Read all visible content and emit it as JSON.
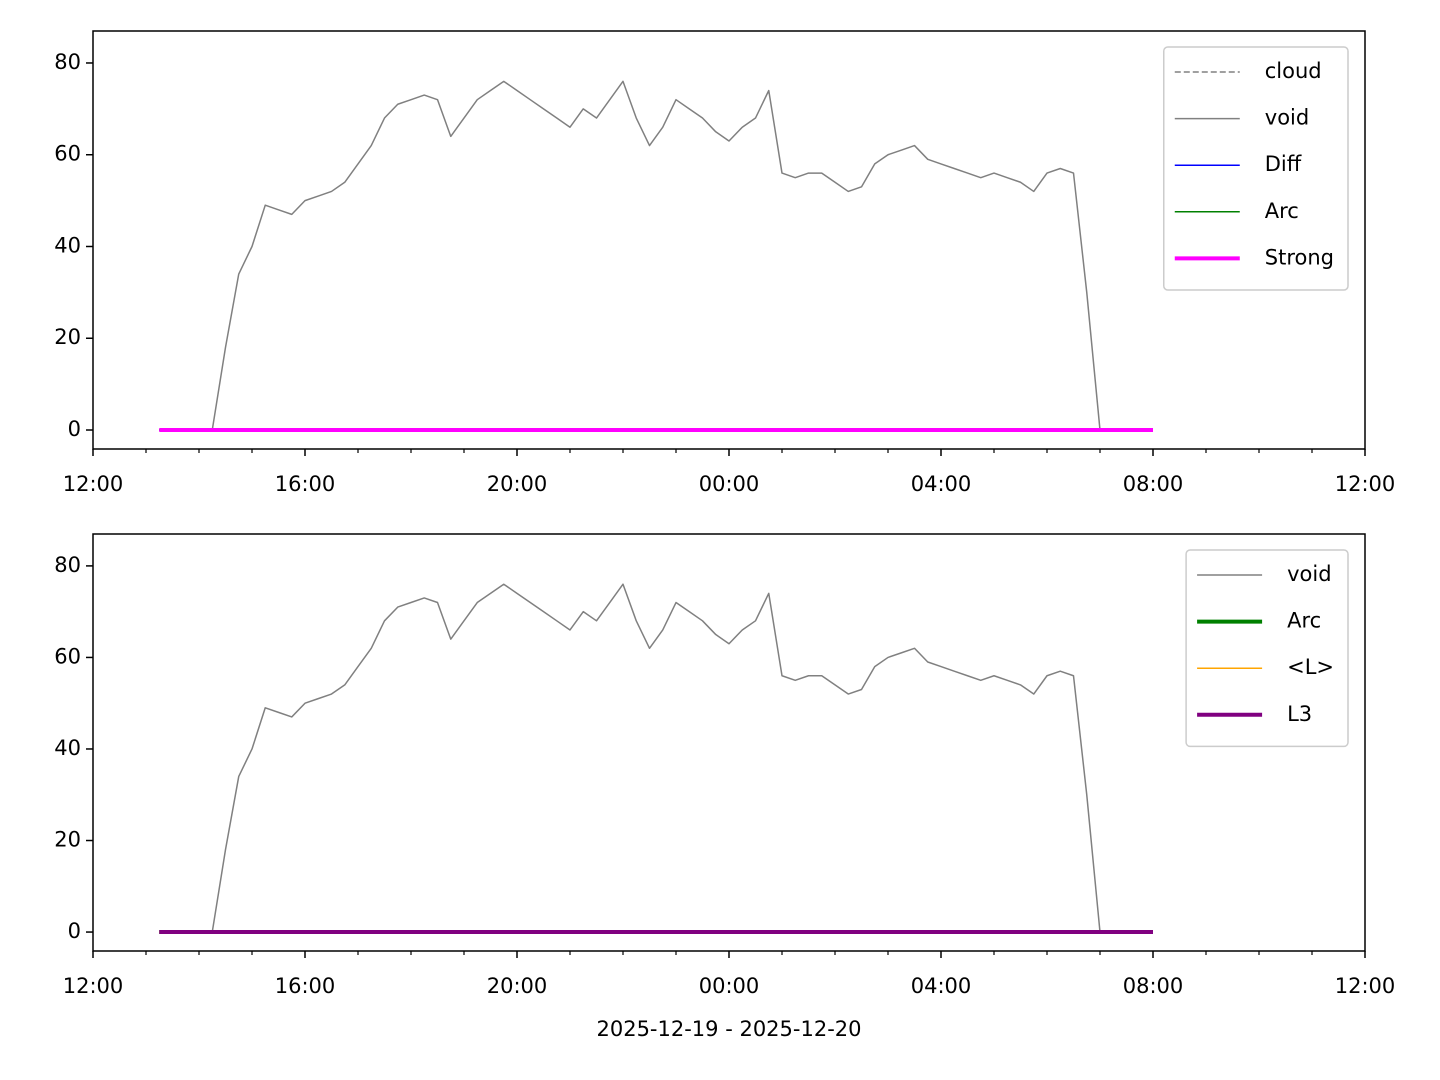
{
  "chart_data": [
    {
      "type": "line",
      "legend": "upper right",
      "xlim": [
        12,
        36
      ],
      "ylim": [
        -4.14,
        86.97
      ],
      "xticks": [
        {
          "value": 12,
          "label": "12:00"
        },
        {
          "value": 16,
          "label": "16:00"
        },
        {
          "value": 20,
          "label": "20:00"
        },
        {
          "value": 24,
          "label": "00:00"
        },
        {
          "value": 28,
          "label": "04:00"
        },
        {
          "value": 32,
          "label": "08:00"
        },
        {
          "value": 36,
          "label": "12:00"
        }
      ],
      "xminorticks": [
        13,
        14,
        15,
        17,
        18,
        19,
        21,
        22,
        23,
        25,
        26,
        27,
        29,
        30,
        31,
        33,
        34,
        35
      ],
      "yticks": [
        0,
        20,
        40,
        60,
        80
      ],
      "x": [
        13.25,
        13.5,
        13.75,
        14,
        14.25,
        14.5,
        14.75,
        15,
        15.25,
        15.5,
        15.75,
        16,
        16.25,
        16.5,
        16.75,
        17,
        17.25,
        17.5,
        17.75,
        18,
        18.25,
        18.5,
        18.75,
        19,
        19.25,
        19.5,
        19.75,
        20,
        20.25,
        20.5,
        20.75,
        21,
        21.25,
        21.5,
        21.75,
        22,
        22.25,
        22.5,
        22.75,
        23,
        23.25,
        23.5,
        23.75,
        24,
        24.25,
        24.5,
        24.75,
        25,
        25.25,
        25.5,
        25.75,
        26,
        26.25,
        26.5,
        26.75,
        27,
        27.25,
        27.5,
        27.75,
        28,
        28.25,
        28.5,
        28.75,
        29,
        29.25,
        29.5,
        29.75,
        30,
        30.25,
        30.5,
        30.75,
        31,
        31.25,
        31.5,
        31.75,
        32
      ],
      "series": [
        {
          "name": "cloud",
          "color": "#808080",
          "linewidth": 1.5,
          "linestyle": "dashed",
          "values": [
            0,
            0,
            0,
            0,
            0,
            0,
            0,
            0,
            0,
            0,
            0,
            0,
            0,
            0,
            0,
            0,
            0,
            0,
            0,
            0,
            0,
            0,
            0,
            0,
            0,
            0,
            0,
            0,
            0,
            0,
            0,
            0,
            0,
            0,
            0,
            0,
            0,
            0,
            0,
            0,
            0,
            0,
            0,
            0,
            0,
            0,
            0,
            0,
            0,
            0,
            0,
            0,
            0,
            0,
            0,
            0,
            0,
            0,
            0,
            0,
            0,
            0,
            0,
            0,
            0,
            0,
            0,
            0,
            0,
            0,
            0,
            0,
            0,
            0,
            0,
            0
          ]
        },
        {
          "name": "void",
          "color": "#808080",
          "linewidth": 1.5,
          "linestyle": "solid",
          "values": [
            null,
            null,
            null,
            null,
            0,
            18,
            34,
            40,
            49,
            48,
            47,
            50,
            51,
            52,
            54,
            58,
            62,
            68,
            71,
            72,
            73,
            72,
            64,
            68,
            72,
            74,
            76,
            74,
            72,
            70,
            68,
            66,
            70,
            68,
            72,
            76,
            68,
            62,
            66,
            72,
            70,
            68,
            65,
            63,
            66,
            68,
            74,
            56,
            55,
            56,
            56,
            54,
            52,
            53,
            58,
            60,
            61,
            62,
            59,
            58,
            57,
            56,
            55,
            56,
            55,
            54,
            52,
            56,
            57,
            56,
            30,
            0,
            null,
            null,
            null,
            null
          ]
        },
        {
          "name": "Diff",
          "color": "#0000ff",
          "linewidth": 1.5,
          "linestyle": "solid",
          "values": [
            0,
            0,
            0,
            0,
            0,
            0,
            0,
            0,
            0,
            0,
            0,
            0,
            0,
            0,
            0,
            0,
            0,
            0,
            0,
            0,
            0,
            0,
            0,
            0,
            0,
            0,
            0,
            0,
            0,
            0,
            0,
            0,
            0,
            0,
            0,
            0,
            0,
            0,
            0,
            0,
            0,
            0,
            0,
            0,
            0,
            0,
            0,
            0,
            0,
            0,
            0,
            0,
            0,
            0,
            0,
            0,
            0,
            0,
            0,
            0,
            0,
            0,
            0,
            0,
            0,
            0,
            0,
            0,
            0,
            0,
            0,
            0,
            0,
            0,
            0,
            0
          ]
        },
        {
          "name": "Arc",
          "color": "#008000",
          "linewidth": 1.5,
          "linestyle": "solid",
          "values": [
            0,
            0,
            0,
            0,
            0,
            0,
            0,
            0,
            0,
            0,
            0,
            0,
            0,
            0,
            0,
            0,
            0,
            0,
            0,
            0,
            0,
            0,
            0,
            0,
            0,
            0,
            0,
            0,
            0,
            0,
            0,
            0,
            0,
            0,
            0,
            0,
            0,
            0,
            0,
            0,
            0,
            0,
            0,
            0,
            0,
            0,
            0,
            0,
            0,
            0,
            0,
            0,
            0,
            0,
            0,
            0,
            0,
            0,
            0,
            0,
            0,
            0,
            0,
            0,
            0,
            0,
            0,
            0,
            0,
            0,
            0,
            0,
            0,
            0,
            0,
            0
          ]
        },
        {
          "name": "Strong",
          "color": "#ff00ff",
          "linewidth": 4,
          "linestyle": "solid",
          "values": [
            0,
            0,
            0,
            0,
            0,
            0,
            0,
            0,
            0,
            0,
            0,
            0,
            0,
            0,
            0,
            0,
            0,
            0,
            0,
            0,
            0,
            0,
            0,
            0,
            0,
            0,
            0,
            0,
            0,
            0,
            0,
            0,
            0,
            0,
            0,
            0,
            0,
            0,
            0,
            0,
            0,
            0,
            0,
            0,
            0,
            0,
            0,
            0,
            0,
            0,
            0,
            0,
            0,
            0,
            0,
            0,
            0,
            0,
            0,
            0,
            0,
            0,
            0,
            0,
            0,
            0,
            0,
            0,
            0,
            0,
            0,
            0,
            0,
            0,
            0,
            0
          ]
        }
      ]
    },
    {
      "type": "line",
      "legend": "upper right",
      "xlabel": "2025-12-19 - 2025-12-20",
      "xlim": [
        12,
        36
      ],
      "ylim": [
        -4.14,
        86.97
      ],
      "xticks": [
        {
          "value": 12,
          "label": "12:00"
        },
        {
          "value": 16,
          "label": "16:00"
        },
        {
          "value": 20,
          "label": "20:00"
        },
        {
          "value": 24,
          "label": "00:00"
        },
        {
          "value": 28,
          "label": "04:00"
        },
        {
          "value": 32,
          "label": "08:00"
        },
        {
          "value": 36,
          "label": "12:00"
        }
      ],
      "xminorticks": [
        13,
        14,
        15,
        17,
        18,
        19,
        21,
        22,
        23,
        25,
        26,
        27,
        29,
        30,
        31,
        33,
        34,
        35
      ],
      "yticks": [
        0,
        20,
        40,
        60,
        80
      ],
      "x": [
        13.25,
        13.5,
        13.75,
        14,
        14.25,
        14.5,
        14.75,
        15,
        15.25,
        15.5,
        15.75,
        16,
        16.25,
        16.5,
        16.75,
        17,
        17.25,
        17.5,
        17.75,
        18,
        18.25,
        18.5,
        18.75,
        19,
        19.25,
        19.5,
        19.75,
        20,
        20.25,
        20.5,
        20.75,
        21,
        21.25,
        21.5,
        21.75,
        22,
        22.25,
        22.5,
        22.75,
        23,
        23.25,
        23.5,
        23.75,
        24,
        24.25,
        24.5,
        24.75,
        25,
        25.25,
        25.5,
        25.75,
        26,
        26.25,
        26.5,
        26.75,
        27,
        27.25,
        27.5,
        27.75,
        28,
        28.25,
        28.5,
        28.75,
        29,
        29.25,
        29.5,
        29.75,
        30,
        30.25,
        30.5,
        30.75,
        31,
        31.25,
        31.5,
        31.75,
        32
      ],
      "series": [
        {
          "name": "void",
          "color": "#808080",
          "linewidth": 1.5,
          "linestyle": "solid",
          "values": [
            null,
            null,
            null,
            null,
            0,
            18,
            34,
            40,
            49,
            48,
            47,
            50,
            51,
            52,
            54,
            58,
            62,
            68,
            71,
            72,
            73,
            72,
            64,
            68,
            72,
            74,
            76,
            74,
            72,
            70,
            68,
            66,
            70,
            68,
            72,
            76,
            68,
            62,
            66,
            72,
            70,
            68,
            65,
            63,
            66,
            68,
            74,
            56,
            55,
            56,
            56,
            54,
            52,
            53,
            58,
            60,
            61,
            62,
            59,
            58,
            57,
            56,
            55,
            56,
            55,
            54,
            52,
            56,
            57,
            56,
            30,
            0,
            null,
            null,
            null,
            null
          ]
        },
        {
          "name": "Arc",
          "color": "#008000",
          "linewidth": 4,
          "linestyle": "solid",
          "values": [
            0,
            0,
            0,
            0,
            0,
            0,
            0,
            0,
            0,
            0,
            0,
            0,
            0,
            0,
            0,
            0,
            0,
            0,
            0,
            0,
            0,
            0,
            0,
            0,
            0,
            0,
            0,
            0,
            0,
            0,
            0,
            0,
            0,
            0,
            0,
            0,
            0,
            0,
            0,
            0,
            0,
            0,
            0,
            0,
            0,
            0,
            0,
            0,
            0,
            0,
            0,
            0,
            0,
            0,
            0,
            0,
            0,
            0,
            0,
            0,
            0,
            0,
            0,
            0,
            0,
            0,
            0,
            0,
            0,
            0,
            0,
            0,
            0,
            0,
            0,
            0
          ]
        },
        {
          "name": "<L>",
          "color": "#ffa500",
          "linewidth": 1.5,
          "linestyle": "solid",
          "values": [
            0,
            0,
            0,
            0,
            0,
            0,
            0,
            0,
            0,
            0,
            0,
            0,
            0,
            0,
            0,
            0,
            0,
            0,
            0,
            0,
            0,
            0,
            0,
            0,
            0,
            0,
            0,
            0,
            0,
            0,
            0,
            0,
            0,
            0,
            0,
            0,
            0,
            0,
            0,
            0,
            0,
            0,
            0,
            0,
            0,
            0,
            0,
            0,
            0,
            0,
            0,
            0,
            0,
            0,
            0,
            0,
            0,
            0,
            0,
            0,
            0,
            0,
            0,
            0,
            0,
            0,
            0,
            0,
            0,
            0,
            0,
            0,
            0,
            0,
            0,
            0
          ]
        },
        {
          "name": "L3",
          "color": "#800080",
          "linewidth": 4,
          "linestyle": "solid",
          "values": [
            0,
            0,
            0,
            0,
            0,
            0,
            0,
            0,
            0,
            0,
            0,
            0,
            0,
            0,
            0,
            0,
            0,
            0,
            0,
            0,
            0,
            0,
            0,
            0,
            0,
            0,
            0,
            0,
            0,
            0,
            0,
            0,
            0,
            0,
            0,
            0,
            0,
            0,
            0,
            0,
            0,
            0,
            0,
            0,
            0,
            0,
            0,
            0,
            0,
            0,
            0,
            0,
            0,
            0,
            0,
            0,
            0,
            0,
            0,
            0,
            0,
            0,
            0,
            0,
            0,
            0,
            0,
            0,
            0,
            0,
            0,
            0,
            0,
            0,
            0,
            0
          ]
        }
      ]
    }
  ]
}
